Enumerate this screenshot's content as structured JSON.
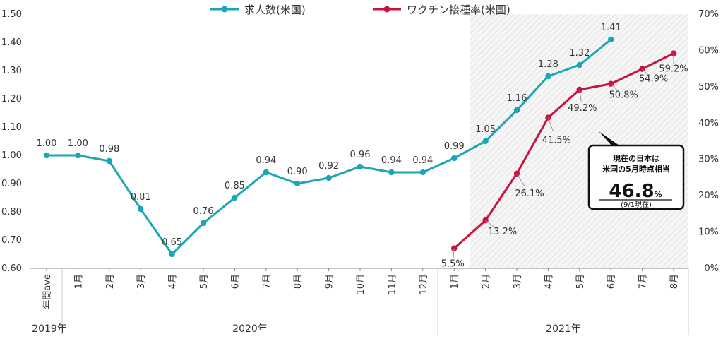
{
  "legend": {
    "jobs": "求人数(米国)",
    "vaccine": "ワクチン接種率(米国)"
  },
  "colors": {
    "jobs": "#1aa6b7",
    "vaccine": "#c8133e",
    "axis": "#888888",
    "shade": "#d9d9d9"
  },
  "groups": {
    "g2019": "2019年",
    "g2020": "2020年",
    "g2021": "2021年"
  },
  "callout": {
    "line1": "現在の日本は",
    "line2": "米国の5月時点相当",
    "big": "46.8",
    "unit": "%",
    "note": "(9/1現在)"
  },
  "chart_data": {
    "type": "line",
    "categories": [
      "年間ave",
      "1月",
      "2月",
      "3月",
      "4月",
      "5月",
      "6月",
      "7月",
      "8月",
      "9月",
      "10月",
      "11月",
      "12月",
      "1月",
      "2月",
      "3月",
      "4月",
      "5月",
      "6月",
      "7月",
      "8月"
    ],
    "y_left": {
      "ticks": [
        "0.60",
        "0.70",
        "0.80",
        "0.90",
        "1.00",
        "1.10",
        "1.20",
        "1.30",
        "1.40",
        "1.50"
      ],
      "min": 0.6,
      "max": 1.5
    },
    "y_right": {
      "ticks": [
        "0%",
        "10%",
        "20%",
        "30%",
        "40%",
        "50%",
        "60%",
        "70%"
      ],
      "min": 0,
      "max": 70
    },
    "series": [
      {
        "name": "求人数(米国)",
        "axis": "left",
        "values": [
          1.0,
          1.0,
          0.98,
          0.81,
          0.65,
          0.76,
          0.85,
          0.94,
          0.9,
          0.92,
          0.96,
          0.94,
          0.94,
          0.99,
          1.05,
          1.16,
          1.28,
          1.32,
          1.41,
          null,
          null
        ],
        "labels": [
          "1.00",
          "1.00",
          "0.98",
          "0.81",
          "0.65",
          "0.76",
          "0.85",
          "0.94",
          "0.90",
          "0.92",
          "0.96",
          "0.94",
          "0.94",
          "0.99",
          "1.05",
          "1.16",
          "1.28",
          "1.32",
          "1.41",
          null,
          null
        ]
      },
      {
        "name": "ワクチン接種率(米国)",
        "axis": "right",
        "values": [
          null,
          null,
          null,
          null,
          null,
          null,
          null,
          null,
          null,
          null,
          null,
          null,
          null,
          5.5,
          13.2,
          26.1,
          41.5,
          49.2,
          50.8,
          54.9,
          59.2
        ],
        "labels": [
          null,
          null,
          null,
          null,
          null,
          null,
          null,
          null,
          null,
          null,
          null,
          null,
          null,
          "5.5%",
          "13.2%",
          "26.1%",
          "41.5%",
          "49.2%",
          "50.8%",
          "54.9%",
          "59.2%"
        ]
      }
    ],
    "highlight_range": [
      "2月",
      "8月"
    ],
    "grid": false
  }
}
